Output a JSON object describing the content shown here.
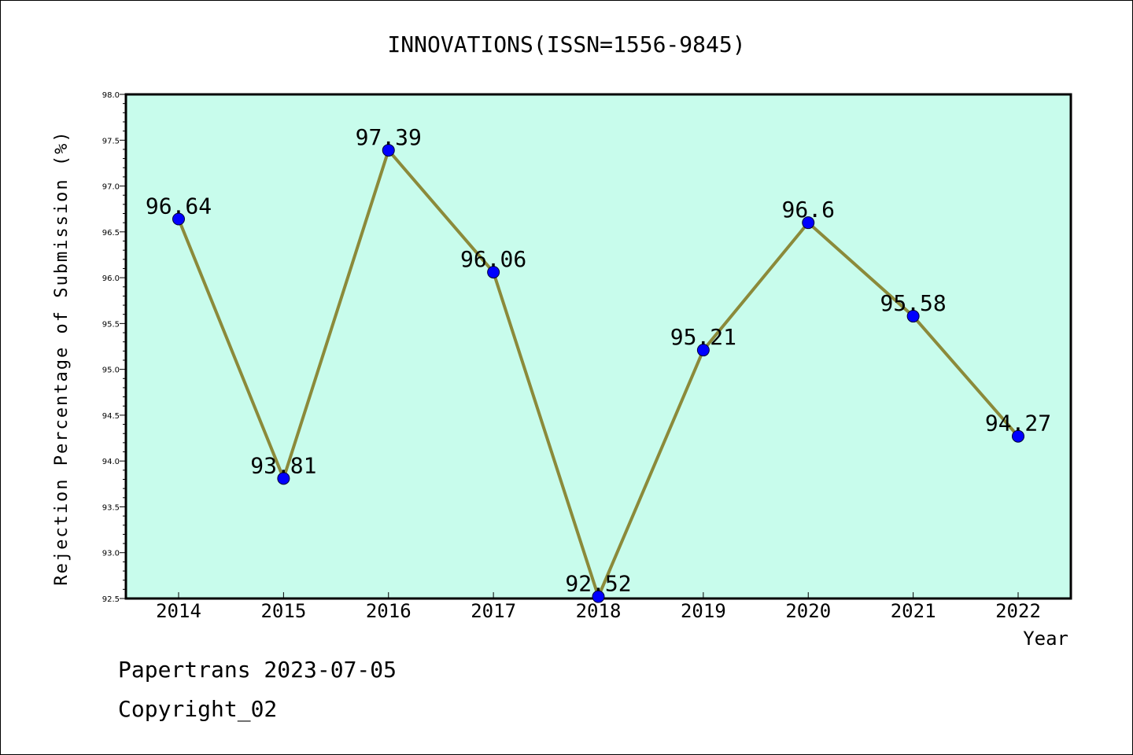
{
  "chart_data": {
    "type": "line",
    "title": "INNOVATIONS(ISSN=1556-9845)",
    "xlabel": "Year",
    "ylabel": "Rejection Percentage of Submission (%)",
    "categories": [
      "2014",
      "2015",
      "2016",
      "2017",
      "2018",
      "2019",
      "2020",
      "2021",
      "2022"
    ],
    "series": [
      {
        "values": [
          96.64,
          93.81,
          97.39,
          96.06,
          92.52,
          95.21,
          96.6,
          95.58,
          94.27
        ],
        "data_labels": [
          "96.64",
          "93.81",
          "97.39",
          "96.06",
          "92.52",
          "95.21",
          "96.6",
          "95.58",
          "94.27"
        ]
      }
    ],
    "ylim": [
      92.5,
      98.0
    ],
    "yticks": [
      "92.5",
      "93.0",
      "93.5",
      "94.0",
      "94.5",
      "95.0",
      "95.5",
      "96.0",
      "96.5",
      "97.0",
      "97.5",
      "98.0"
    ],
    "grid": false,
    "legend": "none",
    "colors": {
      "plot_background": "#c8fcec",
      "line": "#8b8a3a",
      "marker": "#0000ff"
    }
  },
  "footer": {
    "line1": "Papertrans 2023-07-05",
    "line2": "Copyright_02"
  }
}
